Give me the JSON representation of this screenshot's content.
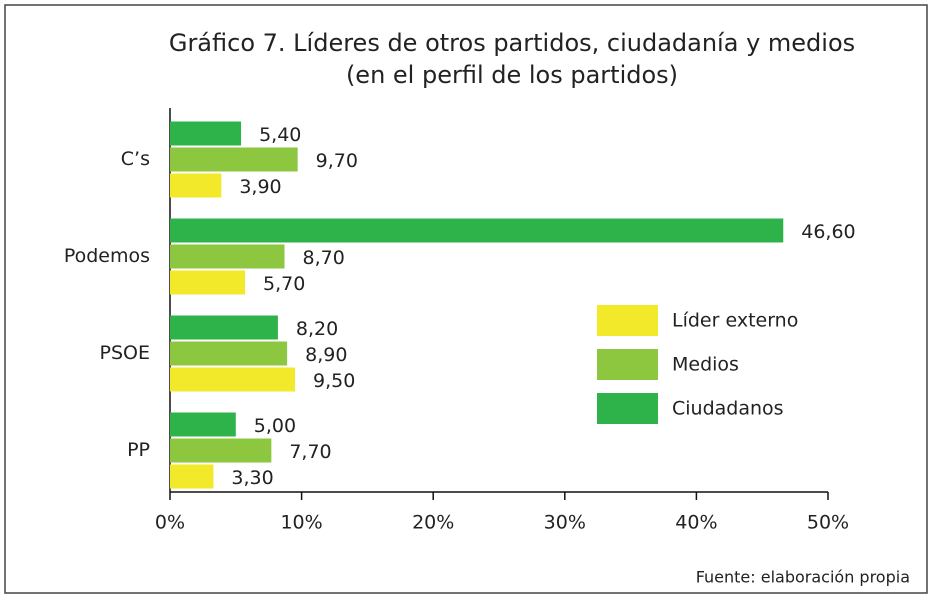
{
  "chart_data": {
    "type": "bar",
    "orientation": "horizontal",
    "title": "Gráfico 7. Líderes de otros partidos, ciudadanía y medios",
    "subtitle": "(en el perfil de los partidos)",
    "source": "Fuente: elaboración propia",
    "categories": [
      "C’s",
      "Podemos",
      "PSOE",
      "PP"
    ],
    "series": [
      {
        "name": "Líder externo",
        "color": "#f2e92b",
        "values": [
          3.9,
          5.7,
          9.5,
          3.3
        ],
        "value_labels": [
          "3,90",
          "5,70",
          "9,50",
          "3,30"
        ]
      },
      {
        "name": "Medios",
        "color": "#8dc63f",
        "values": [
          9.7,
          8.7,
          8.9,
          7.7
        ],
        "value_labels": [
          "9,70",
          "8,70",
          "8,90",
          "7,70"
        ]
      },
      {
        "name": "Ciudadanos",
        "color": "#2db34a",
        "values": [
          5.4,
          46.6,
          8.2,
          5.0
        ],
        "value_labels": [
          "5,40",
          "46,60",
          "8,20",
          "5,00"
        ]
      }
    ],
    "xlim": [
      0,
      50
    ],
    "xticks": [
      {
        "value": 0,
        "label": "0%"
      },
      {
        "value": 10,
        "label": "10%"
      },
      {
        "value": 20,
        "label": "20%"
      },
      {
        "value": 30,
        "label": "30%"
      },
      {
        "value": 40,
        "label": "40%"
      },
      {
        "value": 50,
        "label": "50%"
      }
    ],
    "legend_position": "right"
  }
}
